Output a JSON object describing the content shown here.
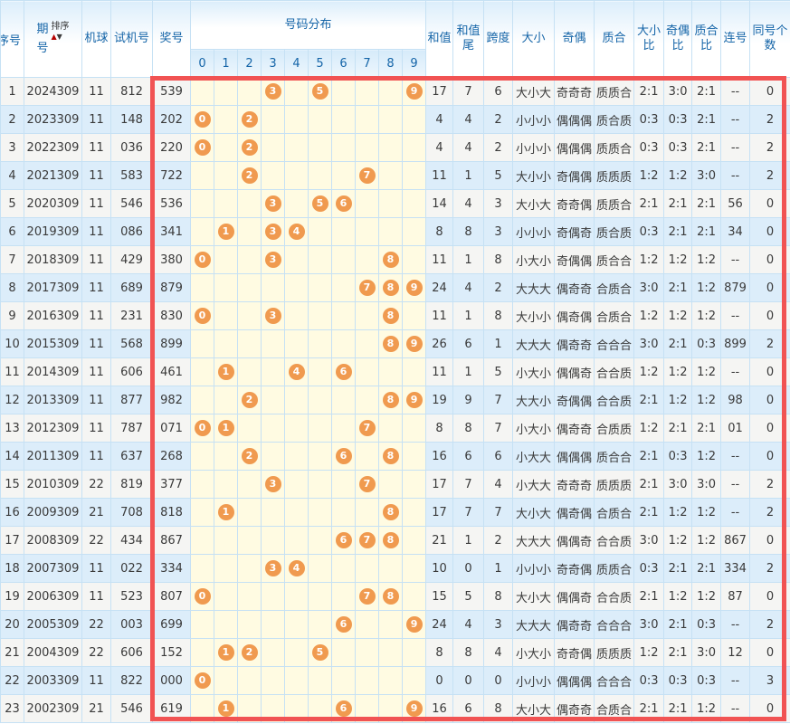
{
  "colors": {
    "accent_blue": "#1565a8",
    "row_even": "#dcedfa",
    "row_odd": "#f5f5f3",
    "dist_bg": "#fffbe2",
    "ball": "#f09a4f",
    "red_box": "#f15353",
    "sort_up": "#b40000",
    "sort_down": "#3a3a3a",
    "border": "#c6e1f4"
  },
  "table": {
    "header": {
      "seq": "序号",
      "period_l1": "期",
      "period_l2": "号",
      "sort": "排序",
      "machine": "机球",
      "test": "试机号",
      "prize": "奖号",
      "dist": "号码分布",
      "digits": [
        "0",
        "1",
        "2",
        "3",
        "4",
        "5",
        "6",
        "7",
        "8",
        "9"
      ],
      "sum": "和值",
      "sum_tail": "和值尾",
      "span": "跨度",
      "size": "大小",
      "parity": "奇偶",
      "prime": "质合",
      "size_ratio": "大小比",
      "parity_ratio": "奇偶比",
      "prime_ratio": "质合比",
      "consecutive": "连号",
      "same_count": "同号个数"
    },
    "rows": [
      {
        "seq": "1",
        "period": "2024309",
        "machine": "11",
        "test": "812",
        "prize": "539",
        "dist": [
          3,
          5,
          9
        ],
        "sum": "17",
        "sum_tail": "7",
        "span": "6",
        "size": "大小大",
        "parity": "奇奇奇",
        "prime": "质质合",
        "size_ratio": "2:1",
        "parity_ratio": "3:0",
        "prime_ratio": "2:1",
        "consecutive": "--",
        "same_count": "0"
      },
      {
        "seq": "2",
        "period": "2023309",
        "machine": "11",
        "test": "148",
        "prize": "202",
        "dist": [
          0,
          2
        ],
        "sum": "4",
        "sum_tail": "4",
        "span": "2",
        "size": "小小小",
        "parity": "偶偶偶",
        "prime": "质合质",
        "size_ratio": "0:3",
        "parity_ratio": "0:3",
        "prime_ratio": "2:1",
        "consecutive": "--",
        "same_count": "2"
      },
      {
        "seq": "3",
        "period": "2022309",
        "machine": "11",
        "test": "036",
        "prize": "220",
        "dist": [
          0,
          2
        ],
        "sum": "4",
        "sum_tail": "4",
        "span": "2",
        "size": "小小小",
        "parity": "偶偶偶",
        "prime": "质质合",
        "size_ratio": "0:3",
        "parity_ratio": "0:3",
        "prime_ratio": "2:1",
        "consecutive": "--",
        "same_count": "2"
      },
      {
        "seq": "4",
        "period": "2021309",
        "machine": "11",
        "test": "583",
        "prize": "722",
        "dist": [
          2,
          7
        ],
        "sum": "11",
        "sum_tail": "1",
        "span": "5",
        "size": "大小小",
        "parity": "奇偶偶",
        "prime": "质质质",
        "size_ratio": "1:2",
        "parity_ratio": "1:2",
        "prime_ratio": "3:0",
        "consecutive": "--",
        "same_count": "2"
      },
      {
        "seq": "5",
        "period": "2020309",
        "machine": "11",
        "test": "546",
        "prize": "536",
        "dist": [
          3,
          5,
          6
        ],
        "sum": "14",
        "sum_tail": "4",
        "span": "3",
        "size": "大小大",
        "parity": "奇奇偶",
        "prime": "质质合",
        "size_ratio": "2:1",
        "parity_ratio": "2:1",
        "prime_ratio": "2:1",
        "consecutive": "56",
        "same_count": "0"
      },
      {
        "seq": "6",
        "period": "2019309",
        "machine": "11",
        "test": "086",
        "prize": "341",
        "dist": [
          1,
          3,
          4
        ],
        "sum": "8",
        "sum_tail": "8",
        "span": "3",
        "size": "小小小",
        "parity": "奇偶奇",
        "prime": "质合质",
        "size_ratio": "0:3",
        "parity_ratio": "2:1",
        "prime_ratio": "2:1",
        "consecutive": "34",
        "same_count": "0"
      },
      {
        "seq": "7",
        "period": "2018309",
        "machine": "11",
        "test": "429",
        "prize": "380",
        "dist": [
          0,
          3,
          8
        ],
        "sum": "11",
        "sum_tail": "1",
        "span": "8",
        "size": "小大小",
        "parity": "奇偶偶",
        "prime": "质合合",
        "size_ratio": "1:2",
        "parity_ratio": "1:2",
        "prime_ratio": "1:2",
        "consecutive": "--",
        "same_count": "0"
      },
      {
        "seq": "8",
        "period": "2017309",
        "machine": "11",
        "test": "689",
        "prize": "879",
        "dist": [
          7,
          8,
          9
        ],
        "sum": "24",
        "sum_tail": "4",
        "span": "2",
        "size": "大大大",
        "parity": "偶奇奇",
        "prime": "合质合",
        "size_ratio": "3:0",
        "parity_ratio": "2:1",
        "prime_ratio": "1:2",
        "consecutive": "879",
        "same_count": "0"
      },
      {
        "seq": "9",
        "period": "2016309",
        "machine": "11",
        "test": "231",
        "prize": "830",
        "dist": [
          0,
          3,
          8
        ],
        "sum": "11",
        "sum_tail": "1",
        "span": "8",
        "size": "大小小",
        "parity": "偶奇偶",
        "prime": "合质合",
        "size_ratio": "1:2",
        "parity_ratio": "1:2",
        "prime_ratio": "1:2",
        "consecutive": "--",
        "same_count": "0"
      },
      {
        "seq": "10",
        "period": "2015309",
        "machine": "11",
        "test": "568",
        "prize": "899",
        "dist": [
          8,
          9
        ],
        "sum": "26",
        "sum_tail": "6",
        "span": "1",
        "size": "大大大",
        "parity": "偶奇奇",
        "prime": "合合合",
        "size_ratio": "3:0",
        "parity_ratio": "2:1",
        "prime_ratio": "0:3",
        "consecutive": "899",
        "same_count": "2"
      },
      {
        "seq": "11",
        "period": "2014309",
        "machine": "11",
        "test": "606",
        "prize": "461",
        "dist": [
          1,
          4,
          6
        ],
        "sum": "11",
        "sum_tail": "1",
        "span": "5",
        "size": "小大小",
        "parity": "偶偶奇",
        "prime": "合合质",
        "size_ratio": "1:2",
        "parity_ratio": "1:2",
        "prime_ratio": "1:2",
        "consecutive": "--",
        "same_count": "0"
      },
      {
        "seq": "12",
        "period": "2013309",
        "machine": "11",
        "test": "877",
        "prize": "982",
        "dist": [
          2,
          8,
          9
        ],
        "sum": "19",
        "sum_tail": "9",
        "span": "7",
        "size": "大大小",
        "parity": "奇偶偶",
        "prime": "合合质",
        "size_ratio": "2:1",
        "parity_ratio": "1:2",
        "prime_ratio": "1:2",
        "consecutive": "98",
        "same_count": "0"
      },
      {
        "seq": "13",
        "period": "2012309",
        "machine": "11",
        "test": "787",
        "prize": "071",
        "dist": [
          0,
          1,
          7
        ],
        "sum": "8",
        "sum_tail": "8",
        "span": "7",
        "size": "小大小",
        "parity": "偶奇奇",
        "prime": "合质质",
        "size_ratio": "1:2",
        "parity_ratio": "2:1",
        "prime_ratio": "2:1",
        "consecutive": "01",
        "same_count": "0"
      },
      {
        "seq": "14",
        "period": "2011309",
        "machine": "11",
        "test": "637",
        "prize": "268",
        "dist": [
          2,
          6,
          8
        ],
        "sum": "16",
        "sum_tail": "6",
        "span": "6",
        "size": "小大大",
        "parity": "偶偶偶",
        "prime": "质合合",
        "size_ratio": "2:1",
        "parity_ratio": "0:3",
        "prime_ratio": "1:2",
        "consecutive": "--",
        "same_count": "0"
      },
      {
        "seq": "15",
        "period": "2010309",
        "machine": "22",
        "test": "819",
        "prize": "377",
        "dist": [
          3,
          7
        ],
        "sum": "17",
        "sum_tail": "7",
        "span": "4",
        "size": "小大大",
        "parity": "奇奇奇",
        "prime": "质质质",
        "size_ratio": "2:1",
        "parity_ratio": "3:0",
        "prime_ratio": "3:0",
        "consecutive": "--",
        "same_count": "2"
      },
      {
        "seq": "16",
        "period": "2009309",
        "machine": "21",
        "test": "708",
        "prize": "818",
        "dist": [
          1,
          8
        ],
        "sum": "17",
        "sum_tail": "7",
        "span": "7",
        "size": "大小大",
        "parity": "偶奇偶",
        "prime": "合质合",
        "size_ratio": "2:1",
        "parity_ratio": "1:2",
        "prime_ratio": "1:2",
        "consecutive": "--",
        "same_count": "2"
      },
      {
        "seq": "17",
        "period": "2008309",
        "machine": "22",
        "test": "434",
        "prize": "867",
        "dist": [
          6,
          7,
          8
        ],
        "sum": "21",
        "sum_tail": "1",
        "span": "2",
        "size": "大大大",
        "parity": "偶偶奇",
        "prime": "合合质",
        "size_ratio": "3:0",
        "parity_ratio": "1:2",
        "prime_ratio": "1:2",
        "consecutive": "867",
        "same_count": "0"
      },
      {
        "seq": "18",
        "period": "2007309",
        "machine": "11",
        "test": "022",
        "prize": "334",
        "dist": [
          3,
          4
        ],
        "sum": "10",
        "sum_tail": "0",
        "span": "1",
        "size": "小小小",
        "parity": "奇奇偶",
        "prime": "质质合",
        "size_ratio": "0:3",
        "parity_ratio": "2:1",
        "prime_ratio": "2:1",
        "consecutive": "334",
        "same_count": "2"
      },
      {
        "seq": "19",
        "period": "2006309",
        "machine": "11",
        "test": "523",
        "prize": "807",
        "dist": [
          0,
          7,
          8
        ],
        "sum": "15",
        "sum_tail": "5",
        "span": "8",
        "size": "大小大",
        "parity": "偶偶奇",
        "prime": "合合质",
        "size_ratio": "2:1",
        "parity_ratio": "1:2",
        "prime_ratio": "1:2",
        "consecutive": "87",
        "same_count": "0"
      },
      {
        "seq": "20",
        "period": "2005309",
        "machine": "22",
        "test": "003",
        "prize": "699",
        "dist": [
          6,
          9
        ],
        "sum": "24",
        "sum_tail": "4",
        "span": "3",
        "size": "大大大",
        "parity": "偶奇奇",
        "prime": "合合合",
        "size_ratio": "3:0",
        "parity_ratio": "2:1",
        "prime_ratio": "0:3",
        "consecutive": "--",
        "same_count": "2"
      },
      {
        "seq": "21",
        "period": "2004309",
        "machine": "22",
        "test": "606",
        "prize": "152",
        "dist": [
          1,
          2,
          5
        ],
        "sum": "8",
        "sum_tail": "8",
        "span": "4",
        "size": "小大小",
        "parity": "奇奇偶",
        "prime": "质质质",
        "size_ratio": "1:2",
        "parity_ratio": "2:1",
        "prime_ratio": "3:0",
        "consecutive": "12",
        "same_count": "0"
      },
      {
        "seq": "22",
        "period": "2003309",
        "machine": "11",
        "test": "822",
        "prize": "000",
        "dist": [
          0
        ],
        "sum": "0",
        "sum_tail": "0",
        "span": "0",
        "size": "小小小",
        "parity": "偶偶偶",
        "prime": "合合合",
        "size_ratio": "0:3",
        "parity_ratio": "0:3",
        "prime_ratio": "0:3",
        "consecutive": "--",
        "same_count": "3"
      },
      {
        "seq": "23",
        "period": "2002309",
        "machine": "21",
        "test": "546",
        "prize": "619",
        "dist": [
          1,
          6,
          9
        ],
        "sum": "16",
        "sum_tail": "6",
        "span": "8",
        "size": "大小大",
        "parity": "偶奇奇",
        "prime": "合质合",
        "size_ratio": "2:1",
        "parity_ratio": "2:1",
        "prime_ratio": "1:2",
        "consecutive": "--",
        "same_count": "0"
      }
    ]
  }
}
